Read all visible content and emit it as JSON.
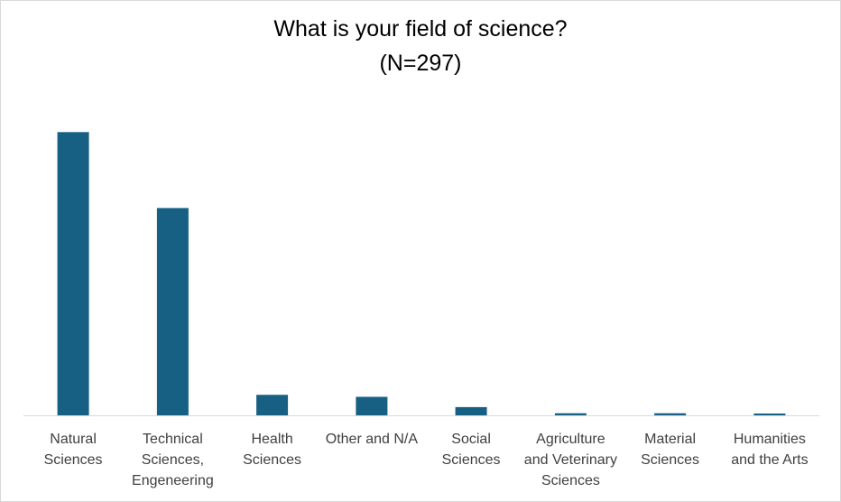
{
  "chart_data": {
    "type": "bar",
    "title": "What is your field of science?",
    "subtitle": "(N=297)",
    "categories": [
      [
        "Natural",
        "Sciences"
      ],
      [
        "Technical",
        "Sciences,",
        "Engeneering"
      ],
      [
        "Health",
        "Sciences"
      ],
      [
        "Other and N/A"
      ],
      [
        "Social",
        "Sciences"
      ],
      [
        "Agriculture",
        "and Veterinary",
        "Sciences"
      ],
      [
        "Material",
        "Sciences"
      ],
      [
        "Humanities",
        "and the Arts"
      ]
    ],
    "values": [
      138,
      101,
      10,
      9,
      4,
      1,
      1,
      0.5
    ],
    "ylim": [
      0,
      150
    ],
    "grid": false,
    "legend": "none",
    "bar_color": "#176084",
    "axis_color": "#d9d9d9"
  }
}
